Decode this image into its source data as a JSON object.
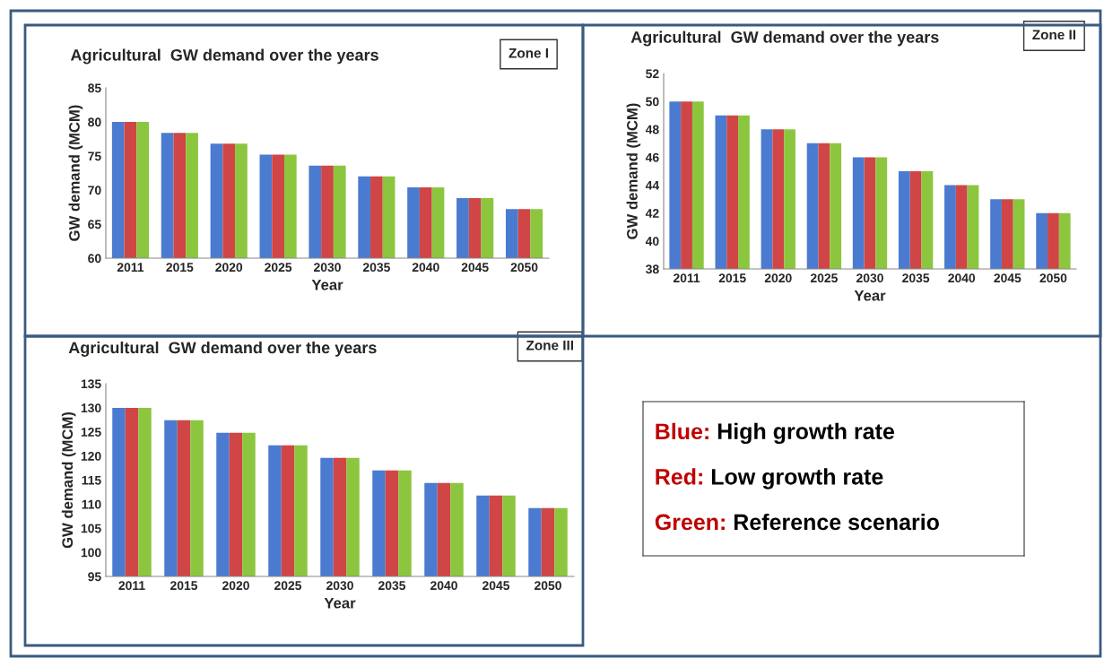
{
  "chart_data": [
    {
      "type": "bar",
      "title": "Agricultural  GW demand over the years",
      "xlabel": "Year",
      "ylabel": "GW demand (MCM)",
      "annotations": [
        "Zone I"
      ],
      "categories": [
        "2011",
        "2015",
        "2020",
        "2025",
        "2030",
        "2035",
        "2040",
        "2045",
        "2050"
      ],
      "series": [
        {
          "color": "#4a7bd0",
          "values": [
            80,
            78.4,
            76.8,
            75.2,
            73.6,
            72,
            70.4,
            68.8,
            67.2
          ]
        },
        {
          "color": "#d04545",
          "values": [
            80,
            78.4,
            76.8,
            75.2,
            73.6,
            72,
            70.4,
            68.8,
            67.2
          ]
        },
        {
          "color": "#8cc63f",
          "values": [
            80,
            78.4,
            76.8,
            75.2,
            73.6,
            72,
            70.4,
            68.8,
            67.2
          ]
        }
      ],
      "ylim": [
        60,
        85
      ],
      "yticks": [
        60,
        65,
        70,
        75,
        80,
        85
      ],
      "grid": false,
      "legend": false
    },
    {
      "type": "bar",
      "title": "Agricultural  GW demand over the years",
      "xlabel": "Year",
      "ylabel": "GW demand (MCM)",
      "annotations": [
        "Zone II"
      ],
      "categories": [
        "2011",
        "2015",
        "2020",
        "2025",
        "2030",
        "2035",
        "2040",
        "2045",
        "2050"
      ],
      "series": [
        {
          "color": "#4a7bd0",
          "values": [
            50,
            49,
            48,
            47,
            46,
            45,
            44,
            43,
            42
          ]
        },
        {
          "color": "#d04545",
          "values": [
            50,
            49,
            48,
            47,
            46,
            45,
            44,
            43,
            42
          ]
        },
        {
          "color": "#8cc63f",
          "values": [
            50,
            49,
            48,
            47,
            46,
            45,
            44,
            43,
            42
          ]
        }
      ],
      "ylim": [
        38,
        52
      ],
      "yticks": [
        38,
        40,
        42,
        44,
        46,
        48,
        50,
        52
      ],
      "grid": false,
      "legend": false
    },
    {
      "type": "bar",
      "title": "Agricultural  GW demand over the years",
      "xlabel": "Year",
      "ylabel": "GW demand (MCM)",
      "annotations": [
        "Zone III"
      ],
      "categories": [
        "2011",
        "2015",
        "2020",
        "2025",
        "2030",
        "2035",
        "2040",
        "2045",
        "2050"
      ],
      "series": [
        {
          "color": "#4a7bd0",
          "values": [
            130,
            127.4,
            124.8,
            122.2,
            119.6,
            117,
            114.4,
            111.8,
            109.2
          ]
        },
        {
          "color": "#d04545",
          "values": [
            130,
            127.4,
            124.8,
            122.2,
            119.6,
            117,
            114.4,
            111.8,
            109.2
          ]
        },
        {
          "color": "#8cc63f",
          "values": [
            130,
            127.4,
            124.8,
            122.2,
            119.6,
            117,
            114.4,
            111.8,
            109.2
          ]
        }
      ],
      "ylim": [
        95,
        135
      ],
      "yticks": [
        95,
        100,
        105,
        110,
        115,
        120,
        125,
        130,
        135
      ],
      "grid": false,
      "legend": false
    },
    {
      "type": "other",
      "annotations": [
        "Blue: High growth rate",
        "Red: Low growth rate",
        "Green: Reference scenario"
      ]
    }
  ]
}
